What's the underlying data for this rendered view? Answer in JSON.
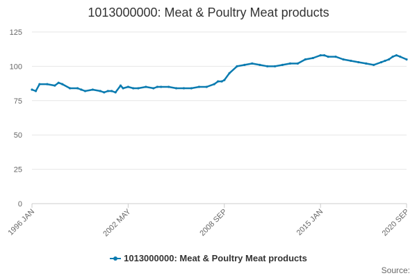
{
  "chart_data": {
    "type": "line",
    "title": "1013000000: Meat & Poultry Meat products",
    "xlabel": "",
    "ylabel": "",
    "ylim": [
      0,
      125
    ],
    "yticks": [
      0,
      25,
      50,
      75,
      100,
      125
    ],
    "xlim": [
      "1996-01",
      "2020-09"
    ],
    "xticks": [
      "1996 JAN",
      "2002 MAY",
      "2008 SEP",
      "2015 JAN",
      "2020 SEP"
    ],
    "grid": true,
    "legend_position": "bottom",
    "series": [
      {
        "name": "1013000000: Meat & Poultry Meat products",
        "color": "#0a7bb0",
        "x": [
          "1996-01",
          "1996-04",
          "1996-07",
          "1997-01",
          "1997-07",
          "1997-10",
          "1998-01",
          "1998-07",
          "1999-01",
          "1999-04",
          "1999-07",
          "2000-01",
          "2000-07",
          "2000-10",
          "2001-01",
          "2001-04",
          "2001-07",
          "2001-11",
          "2002-01",
          "2002-05",
          "2002-09",
          "2003-01",
          "2003-07",
          "2004-01",
          "2004-04",
          "2004-07",
          "2005-01",
          "2005-07",
          "2006-01",
          "2006-07",
          "2007-01",
          "2007-07",
          "2008-01",
          "2008-04",
          "2008-07",
          "2008-09",
          "2009-01",
          "2009-07",
          "2010-01",
          "2010-07",
          "2011-01",
          "2011-07",
          "2012-01",
          "2012-07",
          "2013-01",
          "2013-07",
          "2014-01",
          "2014-07",
          "2015-01",
          "2015-04",
          "2015-07",
          "2016-01",
          "2016-07",
          "2017-01",
          "2017-07",
          "2018-01",
          "2018-07",
          "2019-01",
          "2019-04",
          "2019-07",
          "2019-10",
          "2020-01",
          "2020-04",
          "2020-09"
        ],
        "values": [
          83,
          82,
          87,
          87,
          86,
          88,
          87,
          84,
          84,
          83,
          82,
          83,
          82,
          81,
          82,
          82,
          81,
          86,
          84,
          85,
          84,
          84,
          85,
          84,
          85,
          85,
          85,
          84,
          84,
          84,
          85,
          85,
          87,
          89,
          89,
          90,
          95,
          100,
          101,
          102,
          101,
          100,
          100,
          101,
          102,
          102,
          105,
          106,
          108,
          108,
          107,
          107,
          105,
          104,
          103,
          102,
          101,
          103,
          104,
          105,
          107,
          108,
          107,
          105
        ]
      }
    ]
  },
  "legend": {
    "label": "1013000000: Meat & Poultry Meat products"
  },
  "source": {
    "label": "Source:"
  }
}
